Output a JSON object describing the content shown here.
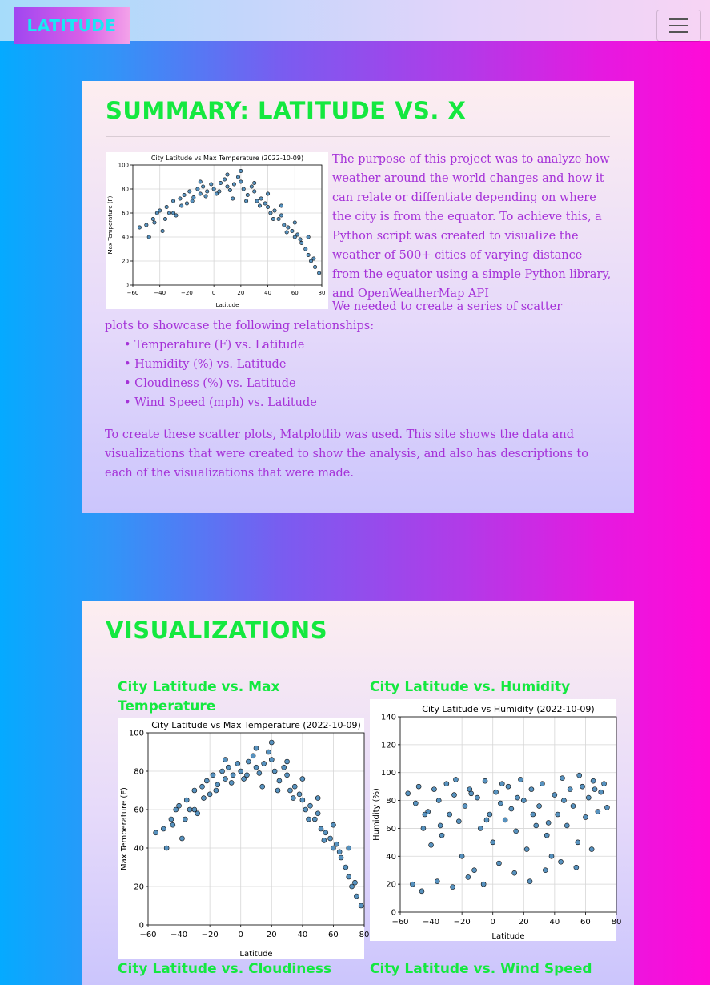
{
  "navbar": {
    "brand": "LATITUDE",
    "toggle_icon": "hamburger-menu-icon"
  },
  "summary": {
    "title": "SUMMARY: LATITUDE VS. X",
    "paragraph1": "The purpose of this project was to analyze how weather around the world changes and how it can relate or diffentiate depending on where the city is from the equator. To achieve this, a Python script was created to visualize the weather of 500+ cities of varying distance from the equator using a simple Python library, and OpenWeatherMap API",
    "paragraph2": "We needed to create a series of scatter plots to showcase the following relationships:",
    "bullets": [
      "• Temperature (F) vs. Latitude",
      "• Humidity (%) vs. Latitude",
      "• Cloudiness (%) vs. Latitude",
      "• Wind Speed (mph) vs. Latitude"
    ],
    "paragraph3": "To create these scatter plots, Matplotlib was used. This site shows the data and visualizations that were created to show the analysis, and also has descriptions to each of the visualizations that were made."
  },
  "visualizations": {
    "title": "VISUALIZATIONS",
    "cards": [
      {
        "heading_line1": "City Latitude vs. Max",
        "heading_line2": "Temperature"
      },
      {
        "heading": "City Latitude vs. Humidity"
      },
      {
        "heading": "City Latitude vs. Cloudiness"
      },
      {
        "heading": "City Latitude vs. Wind Speed"
      }
    ]
  },
  "chart_data": [
    {
      "type": "scatter",
      "title": "City Latitude vs Max Temperature (2022-10-09)",
      "xlabel": "Latitude",
      "ylabel": "Max Temperature (F)",
      "xlim": [
        -60,
        80
      ],
      "ylim": [
        0,
        100
      ],
      "xticks": [
        -60,
        -40,
        -20,
        0,
        20,
        40,
        60,
        80
      ],
      "yticks": [
        0,
        20,
        40,
        60,
        80,
        100
      ],
      "grid": true,
      "point_color": "#3a7fb4",
      "points": [
        [
          -50,
          50
        ],
        [
          -45,
          55
        ],
        [
          -42,
          60
        ],
        [
          -40,
          62
        ],
        [
          -38,
          45
        ],
        [
          -35,
          65
        ],
        [
          -33,
          60
        ],
        [
          -30,
          70
        ],
        [
          -28,
          58
        ],
        [
          -25,
          72
        ],
        [
          -22,
          75
        ],
        [
          -20,
          68
        ],
        [
          -18,
          78
        ],
        [
          -15,
          73
        ],
        [
          -12,
          80
        ],
        [
          -10,
          76
        ],
        [
          -8,
          82
        ],
        [
          -5,
          78
        ],
        [
          -2,
          84
        ],
        [
          0,
          80
        ],
        [
          2,
          76
        ],
        [
          5,
          85
        ],
        [
          8,
          88
        ],
        [
          10,
          82
        ],
        [
          12,
          79
        ],
        [
          15,
          84
        ],
        [
          18,
          90
        ],
        [
          20,
          86
        ],
        [
          22,
          80
        ],
        [
          25,
          75
        ],
        [
          28,
          82
        ],
        [
          30,
          78
        ],
        [
          32,
          70
        ],
        [
          35,
          72
        ],
        [
          38,
          68
        ],
        [
          40,
          65
        ],
        [
          42,
          60
        ],
        [
          45,
          62
        ],
        [
          48,
          55
        ],
        [
          50,
          58
        ],
        [
          52,
          50
        ],
        [
          55,
          48
        ],
        [
          58,
          45
        ],
        [
          60,
          40
        ],
        [
          62,
          42
        ],
        [
          65,
          35
        ],
        [
          68,
          30
        ],
        [
          70,
          25
        ],
        [
          72,
          20
        ],
        [
          75,
          15
        ],
        [
          -55,
          48
        ],
        [
          -48,
          40
        ],
        [
          -44,
          52
        ],
        [
          -36,
          55
        ],
        [
          -24,
          66
        ],
        [
          -16,
          70
        ],
        [
          -6,
          74
        ],
        [
          4,
          78
        ],
        [
          14,
          72
        ],
        [
          24,
          70
        ],
        [
          34,
          66
        ],
        [
          44,
          55
        ],
        [
          54,
          44
        ],
        [
          64,
          38
        ],
        [
          74,
          22
        ],
        [
          -30,
          60
        ],
        [
          -10,
          86
        ],
        [
          10,
          92
        ],
        [
          20,
          95
        ],
        [
          30,
          85
        ],
        [
          40,
          76
        ],
        [
          50,
          66
        ],
        [
          60,
          52
        ],
        [
          70,
          40
        ],
        [
          78,
          10
        ]
      ]
    },
    {
      "type": "scatter",
      "title": "City Latitude vs Humidity (2022-10-09)",
      "xlabel": "Latitude",
      "ylabel": "Humidity (%)",
      "xlim": [
        -60,
        80
      ],
      "ylim": [
        0,
        140
      ],
      "xticks": [
        -60,
        -40,
        -20,
        0,
        20,
        40,
        60,
        80
      ],
      "yticks": [
        0,
        20,
        40,
        60,
        80,
        100,
        120,
        140
      ],
      "grid": true,
      "point_color": "#3a7fb4",
      "points": [
        [
          -55,
          85
        ],
        [
          -50,
          78
        ],
        [
          -48,
          90
        ],
        [
          -45,
          60
        ],
        [
          -42,
          72
        ],
        [
          -40,
          48
        ],
        [
          -38,
          88
        ],
        [
          -35,
          80
        ],
        [
          -33,
          55
        ],
        [
          -30,
          92
        ],
        [
          -28,
          70
        ],
        [
          -25,
          84
        ],
        [
          -22,
          65
        ],
        [
          -20,
          40
        ],
        [
          -18,
          76
        ],
        [
          -15,
          88
        ],
        [
          -12,
          30
        ],
        [
          -10,
          82
        ],
        [
          -8,
          60
        ],
        [
          -5,
          94
        ],
        [
          -2,
          70
        ],
        [
          0,
          50
        ],
        [
          2,
          86
        ],
        [
          5,
          78
        ],
        [
          8,
          66
        ],
        [
          10,
          90
        ],
        [
          12,
          74
        ],
        [
          15,
          58
        ],
        [
          18,
          95
        ],
        [
          20,
          80
        ],
        [
          22,
          45
        ],
        [
          25,
          88
        ],
        [
          28,
          62
        ],
        [
          30,
          76
        ],
        [
          32,
          92
        ],
        [
          35,
          55
        ],
        [
          38,
          40
        ],
        [
          40,
          84
        ],
        [
          42,
          70
        ],
        [
          45,
          96
        ],
        [
          48,
          62
        ],
        [
          50,
          88
        ],
        [
          52,
          76
        ],
        [
          55,
          50
        ],
        [
          58,
          90
        ],
        [
          60,
          68
        ],
        [
          62,
          82
        ],
        [
          65,
          94
        ],
        [
          68,
          72
        ],
        [
          70,
          86
        ],
        [
          -52,
          20
        ],
        [
          -46,
          15
        ],
        [
          -36,
          22
        ],
        [
          -26,
          18
        ],
        [
          -16,
          25
        ],
        [
          -6,
          20
        ],
        [
          4,
          35
        ],
        [
          14,
          28
        ],
        [
          24,
          22
        ],
        [
          34,
          30
        ],
        [
          44,
          36
        ],
        [
          54,
          32
        ],
        [
          64,
          45
        ],
        [
          74,
          75
        ],
        [
          -44,
          70
        ],
        [
          -34,
          62
        ],
        [
          -24,
          95
        ],
        [
          -14,
          85
        ],
        [
          -4,
          66
        ],
        [
          6,
          92
        ],
        [
          16,
          82
        ],
        [
          26,
          70
        ],
        [
          36,
          64
        ],
        [
          46,
          80
        ],
        [
          56,
          98
        ],
        [
          66,
          88
        ],
        [
          72,
          92
        ]
      ]
    }
  ]
}
